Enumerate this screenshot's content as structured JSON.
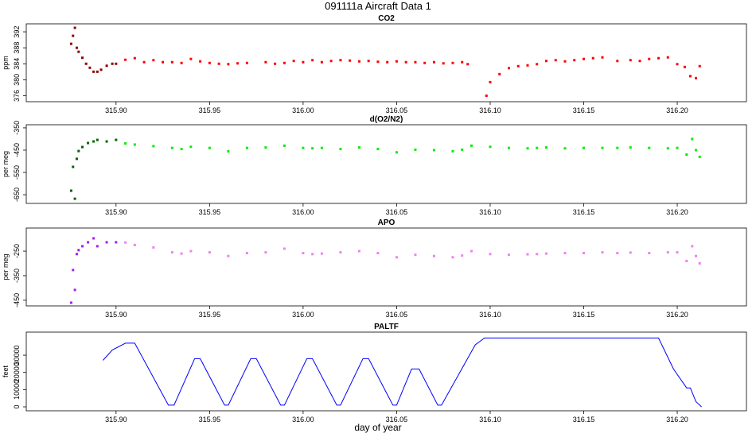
{
  "title": "091111a   Aircraft Data 1",
  "xlabel": "day of year",
  "chart_data": [
    {
      "type": "scatter",
      "title": "CO2",
      "ylabel": "ppm",
      "xlim": [
        315.852,
        316.237
      ],
      "ylim": [
        374.5,
        394
      ],
      "xticks": [
        {
          "value": 315.9,
          "label": "315.90"
        },
        {
          "value": 315.95,
          "label": "315.95"
        },
        {
          "value": 316.0,
          "label": "316.00"
        },
        {
          "value": 316.05,
          "label": "316.05"
        },
        {
          "value": 316.1,
          "label": "316.10"
        },
        {
          "value": 316.15,
          "label": "316.15"
        },
        {
          "value": 316.2,
          "label": "316.20"
        }
      ],
      "yticks": [
        392,
        388,
        384,
        380,
        376
      ],
      "series": [
        {
          "color": "#8b0000",
          "x": [
            315.876,
            315.877,
            315.878,
            315.879,
            315.88,
            315.882,
            315.884,
            315.886,
            315.888,
            315.89,
            315.892,
            315.895,
            315.898,
            315.9
          ],
          "values": [
            389,
            391,
            393,
            388,
            387,
            385.5,
            384,
            383,
            382,
            382,
            382.5,
            383.5,
            384,
            384
          ]
        },
        {
          "color": "#ff0000",
          "x": [
            315.905,
            315.91,
            315.915,
            315.92,
            315.925,
            315.93,
            315.935,
            315.94,
            315.945,
            315.95,
            315.955,
            315.96,
            315.965,
            315.97,
            315.98,
            315.985,
            315.99,
            315.995,
            316.0,
            316.005,
            316.01,
            316.015,
            316.02,
            316.025,
            316.03,
            316.035,
            316.04,
            316.045,
            316.05,
            316.055,
            316.06,
            316.065,
            316.07,
            316.075,
            316.08,
            316.085,
            316.088,
            316.098,
            316.1,
            316.105,
            316.11,
            316.115,
            316.12,
            316.125,
            316.13,
            316.135,
            316.14,
            316.145,
            316.15,
            316.155,
            316.16,
            316.168,
            316.175,
            316.18,
            316.185,
            316.19,
            316.195,
            316.2,
            316.204,
            316.207,
            316.21,
            316.212
          ],
          "values": [
            385,
            385.4,
            384.4,
            384.9,
            384.4,
            384.4,
            384.2,
            385.2,
            384.6,
            384.2,
            384,
            383.9,
            384.1,
            384.2,
            384.4,
            384,
            384.2,
            384.7,
            384.4,
            384.9,
            384.4,
            384.7,
            384.9,
            384.8,
            384.6,
            384.7,
            384.5,
            384.4,
            384.6,
            384.4,
            384.4,
            384.2,
            384.4,
            384.1,
            384.2,
            384.4,
            383.9,
            376,
            379.4,
            381.4,
            382.9,
            383.4,
            383.6,
            383.9,
            384.7,
            384.9,
            384.6,
            384.9,
            385.2,
            385.4,
            385.6,
            384.7,
            384.9,
            384.7,
            385.2,
            385.4,
            385.6,
            383.9,
            383.2,
            380.9,
            380.4,
            383.4
          ]
        }
      ]
    },
    {
      "type": "scatter",
      "title": "d(O2/N2)",
      "ylabel": "per meg",
      "xlim": [
        315.852,
        316.237
      ],
      "ylim": [
        -689,
        -336
      ],
      "xticks": [
        {
          "value": 315.9,
          "label": "315.90"
        },
        {
          "value": 315.95,
          "label": "315.95"
        },
        {
          "value": 316.0,
          "label": "316.00"
        },
        {
          "value": 316.05,
          "label": "316.05"
        },
        {
          "value": 316.1,
          "label": "316.10"
        },
        {
          "value": 316.15,
          "label": "316.15"
        },
        {
          "value": 316.2,
          "label": "316.20"
        }
      ],
      "yticks": [
        -350,
        -450,
        -550,
        -650
      ],
      "series": [
        {
          "color": "#006400",
          "x": [
            315.876,
            315.877,
            315.878,
            315.879,
            315.88,
            315.882,
            315.885,
            315.888,
            315.89,
            315.895,
            315.9
          ],
          "values": [
            -632,
            -525,
            -668,
            -489,
            -454,
            -436,
            -418,
            -411,
            -404,
            -411,
            -404
          ]
        },
        {
          "color": "#00ee00",
          "x": [
            315.905,
            315.91,
            315.92,
            315.93,
            315.935,
            315.94,
            315.95,
            315.96,
            315.97,
            315.98,
            315.99,
            316.0,
            316.005,
            316.01,
            316.02,
            316.03,
            316.04,
            316.05,
            316.06,
            316.07,
            316.08,
            316.085,
            316.09,
            316.1,
            316.11,
            316.12,
            316.125,
            316.13,
            316.14,
            316.15,
            316.16,
            316.168,
            316.175,
            316.185,
            316.195,
            316.2,
            316.205,
            316.208,
            316.21,
            316.212
          ],
          "values": [
            -420,
            -425,
            -432,
            -440,
            -445,
            -435,
            -440,
            -455,
            -440,
            -438,
            -430,
            -440,
            -442,
            -440,
            -445,
            -438,
            -445,
            -460,
            -448,
            -450,
            -455,
            -448,
            -430,
            -435,
            -440,
            -442,
            -440,
            -438,
            -442,
            -440,
            -440,
            -440,
            -438,
            -440,
            -442,
            -440,
            -470,
            -400,
            -450,
            -480
          ]
        }
      ]
    },
    {
      "type": "scatter",
      "title": "APO",
      "ylabel": "per meg",
      "xlim": [
        315.852,
        316.237
      ],
      "ylim": [
        -473,
        -156
      ],
      "xticks": [
        {
          "value": 315.9,
          "label": "315.90"
        },
        {
          "value": 315.95,
          "label": "315.95"
        },
        {
          "value": 316.0,
          "label": "316.00"
        },
        {
          "value": 316.05,
          "label": "316.05"
        },
        {
          "value": 316.1,
          "label": "316.10"
        },
        {
          "value": 316.15,
          "label": "316.15"
        },
        {
          "value": 316.2,
          "label": "316.20"
        }
      ],
      "yticks": [
        -250,
        -350,
        -450
      ],
      "series": [
        {
          "color": "#a020f0",
          "x": [
            315.876,
            315.877,
            315.878,
            315.879,
            315.88,
            315.882,
            315.885,
            315.888,
            315.89,
            315.895,
            315.9
          ],
          "values": [
            -460,
            -327,
            -408,
            -262,
            -246,
            -230,
            -214,
            -198,
            -230,
            -214,
            -214
          ]
        },
        {
          "color": "#ee82ee",
          "x": [
            315.905,
            315.91,
            315.92,
            315.93,
            315.935,
            315.94,
            315.95,
            315.96,
            315.97,
            315.98,
            315.99,
            316.0,
            316.005,
            316.01,
            316.02,
            316.03,
            316.04,
            316.05,
            316.06,
            316.07,
            316.08,
            316.085,
            316.09,
            316.1,
            316.11,
            316.12,
            316.125,
            316.13,
            316.14,
            316.15,
            316.16,
            316.168,
            316.175,
            316.185,
            316.195,
            316.2,
            316.205,
            316.208,
            316.21,
            316.212
          ],
          "values": [
            -215,
            -225,
            -235,
            -255,
            -260,
            -250,
            -255,
            -270,
            -258,
            -255,
            -240,
            -258,
            -262,
            -260,
            -255,
            -250,
            -258,
            -275,
            -265,
            -270,
            -275,
            -268,
            -250,
            -262,
            -265,
            -263,
            -262,
            -260,
            -258,
            -258,
            -255,
            -258,
            -256,
            -258,
            -255,
            -255,
            -290,
            -230,
            -270,
            -300
          ]
        }
      ]
    },
    {
      "type": "line",
      "title": "PALTF",
      "ylabel": "feet",
      "xlim": [
        315.852,
        316.237
      ],
      "ylim": [
        -2300,
        43400
      ],
      "xticks": [
        {
          "value": 315.9,
          "label": "315.90"
        },
        {
          "value": 315.95,
          "label": "315.95"
        },
        {
          "value": 316.0,
          "label": "316.00"
        },
        {
          "value": 316.05,
          "label": "316.05"
        },
        {
          "value": 316.1,
          "label": "316.10"
        },
        {
          "value": 316.15,
          "label": "316.15"
        },
        {
          "value": 316.2,
          "label": "316.20"
        }
      ],
      "yticks": [
        0,
        10000,
        20000,
        30000
      ],
      "series": [
        {
          "color": "#0000ff",
          "x": [
            315.893,
            315.898,
            315.905,
            315.91,
            315.928,
            315.931,
            315.942,
            315.945,
            315.958,
            315.96,
            315.972,
            315.975,
            315.988,
            315.99,
            316.002,
            316.005,
            316.018,
            316.02,
            316.032,
            316.035,
            316.048,
            316.05,
            316.058,
            316.062,
            316.072,
            316.074,
            316.092,
            316.097,
            316.19,
            316.198,
            316.205,
            316.207,
            316.21,
            316.213
          ],
          "values": [
            27000,
            33000,
            37000,
            37000,
            1000,
            1000,
            28000,
            28000,
            1000,
            1000,
            28000,
            28000,
            1000,
            1000,
            28000,
            28000,
            1000,
            1000,
            28000,
            28000,
            1000,
            1000,
            22000,
            22000,
            1000,
            1000,
            36000,
            40000,
            40000,
            22000,
            11000,
            11000,
            3000,
            0
          ]
        }
      ]
    }
  ]
}
